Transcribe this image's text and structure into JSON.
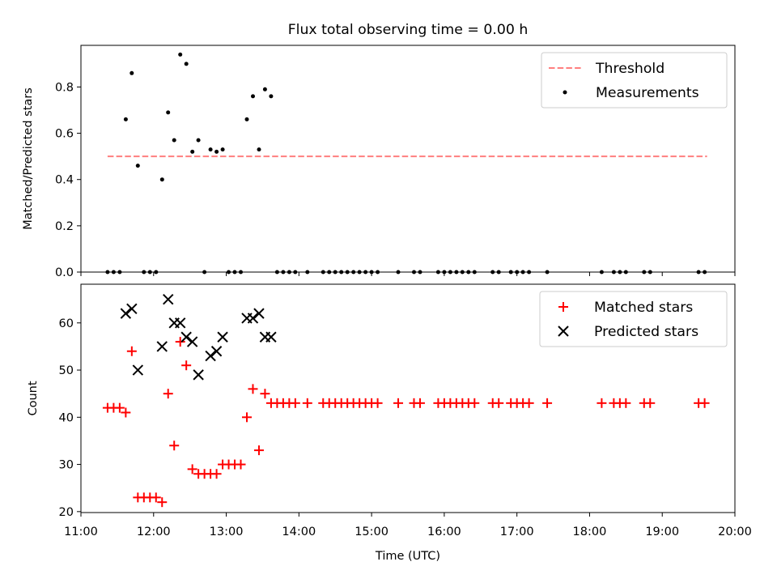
{
  "chart_data": [
    {
      "type": "scatter",
      "title": "Flux total observing time = 0.00 h",
      "xlabel": "",
      "ylabel": "Matched/Predicted stars",
      "xlim": [
        "11:00",
        "20:00"
      ],
      "ylim": [
        0,
        0.98
      ],
      "y_ticks": [
        "0.0",
        "0.2",
        "0.4",
        "0.6",
        "0.8"
      ],
      "grid": false,
      "legend": "top-right",
      "threshold": {
        "name": "Threshold",
        "value": 0.5,
        "x_range": [
          "11:22",
          "19:37"
        ],
        "color": "#ff7f7f",
        "style": "dashed"
      },
      "series": [
        {
          "name": "Measurements",
          "color": "#000000",
          "marker": "dot",
          "points": [
            [
              "11:22",
              0
            ],
            [
              "11:27",
              0
            ],
            [
              "11:32",
              0
            ],
            [
              "11:37",
              0.66
            ],
            [
              "11:42",
              0.86
            ],
            [
              "11:47",
              0.46
            ],
            [
              "11:52",
              0
            ],
            [
              "11:57",
              0
            ],
            [
              "12:02",
              0
            ],
            [
              "12:07",
              0.4
            ],
            [
              "12:12",
              0.69
            ],
            [
              "12:17",
              0.57
            ],
            [
              "12:22",
              0.94
            ],
            [
              "12:27",
              0.9
            ],
            [
              "12:32",
              0.52
            ],
            [
              "12:37",
              0.57
            ],
            [
              "12:42",
              0
            ],
            [
              "12:47",
              0.53
            ],
            [
              "12:52",
              0.52
            ],
            [
              "12:57",
              0.53
            ],
            [
              "13:02",
              0
            ],
            [
              "13:07",
              0
            ],
            [
              "13:12",
              0
            ],
            [
              "13:17",
              0.66
            ],
            [
              "13:22",
              0.76
            ],
            [
              "13:27",
              0.53
            ],
            [
              "13:32",
              0.79
            ],
            [
              "13:37",
              0.76
            ],
            [
              "13:42",
              0
            ],
            [
              "13:47",
              0
            ],
            [
              "13:52",
              0
            ],
            [
              "13:57",
              0
            ],
            [
              "14:07",
              0
            ],
            [
              "14:20",
              0
            ],
            [
              "14:25",
              0
            ],
            [
              "14:30",
              0
            ],
            [
              "14:35",
              0
            ],
            [
              "14:40",
              0
            ],
            [
              "14:45",
              0
            ],
            [
              "14:50",
              0
            ],
            [
              "14:55",
              0
            ],
            [
              "15:00",
              0
            ],
            [
              "15:05",
              0
            ],
            [
              "15:22",
              0
            ],
            [
              "15:35",
              0
            ],
            [
              "15:40",
              0
            ],
            [
              "15:55",
              0
            ],
            [
              "16:00",
              0
            ],
            [
              "16:05",
              0
            ],
            [
              "16:10",
              0
            ],
            [
              "16:15",
              0
            ],
            [
              "16:20",
              0
            ],
            [
              "16:25",
              0
            ],
            [
              "16:40",
              0
            ],
            [
              "16:45",
              0
            ],
            [
              "16:55",
              0
            ],
            [
              "17:00",
              0
            ],
            [
              "17:05",
              0
            ],
            [
              "17:10",
              0
            ],
            [
              "17:25",
              0
            ],
            [
              "18:10",
              0
            ],
            [
              "18:20",
              0
            ],
            [
              "18:25",
              0
            ],
            [
              "18:30",
              0
            ],
            [
              "18:45",
              0
            ],
            [
              "18:50",
              0
            ],
            [
              "19:30",
              0
            ],
            [
              "19:35",
              0
            ]
          ]
        }
      ]
    },
    {
      "type": "scatter",
      "title": "",
      "xlabel": "Time (UTC)",
      "ylabel": "Count",
      "xlim": [
        "11:00",
        "20:00"
      ],
      "ylim": [
        19.8,
        68.2
      ],
      "x_ticks": [
        "11:00",
        "12:00",
        "13:00",
        "14:00",
        "15:00",
        "16:00",
        "17:00",
        "18:00",
        "19:00",
        "20:00"
      ],
      "y_ticks": [
        "20",
        "30",
        "40",
        "50",
        "60"
      ],
      "grid": false,
      "legend": "top-right",
      "series": [
        {
          "name": "Matched stars",
          "color": "#ff0000",
          "marker": "plus",
          "points": [
            [
              "11:22",
              42
            ],
            [
              "11:27",
              42
            ],
            [
              "11:32",
              42
            ],
            [
              "11:37",
              41
            ],
            [
              "11:42",
              54
            ],
            [
              "11:47",
              23
            ],
            [
              "11:52",
              23
            ],
            [
              "11:57",
              23
            ],
            [
              "12:02",
              23
            ],
            [
              "12:07",
              22
            ],
            [
              "12:12",
              45
            ],
            [
              "12:17",
              34
            ],
            [
              "12:22",
              56
            ],
            [
              "12:27",
              51
            ],
            [
              "12:32",
              29
            ],
            [
              "12:37",
              28
            ],
            [
              "12:42",
              28
            ],
            [
              "12:47",
              28
            ],
            [
              "12:52",
              28
            ],
            [
              "12:57",
              30
            ],
            [
              "13:02",
              30
            ],
            [
              "13:07",
              30
            ],
            [
              "13:12",
              30
            ],
            [
              "13:17",
              40
            ],
            [
              "13:22",
              46
            ],
            [
              "13:27",
              33
            ],
            [
              "13:32",
              45
            ],
            [
              "13:37",
              43
            ],
            [
              "13:42",
              43
            ],
            [
              "13:47",
              43
            ],
            [
              "13:52",
              43
            ],
            [
              "13:57",
              43
            ],
            [
              "14:07",
              43
            ],
            [
              "14:20",
              43
            ],
            [
              "14:25",
              43
            ],
            [
              "14:30",
              43
            ],
            [
              "14:35",
              43
            ],
            [
              "14:40",
              43
            ],
            [
              "14:45",
              43
            ],
            [
              "14:50",
              43
            ],
            [
              "14:55",
              43
            ],
            [
              "15:00",
              43
            ],
            [
              "15:05",
              43
            ],
            [
              "15:22",
              43
            ],
            [
              "15:35",
              43
            ],
            [
              "15:40",
              43
            ],
            [
              "15:55",
              43
            ],
            [
              "16:00",
              43
            ],
            [
              "16:05",
              43
            ],
            [
              "16:10",
              43
            ],
            [
              "16:15",
              43
            ],
            [
              "16:20",
              43
            ],
            [
              "16:25",
              43
            ],
            [
              "16:40",
              43
            ],
            [
              "16:45",
              43
            ],
            [
              "16:55",
              43
            ],
            [
              "17:00",
              43
            ],
            [
              "17:05",
              43
            ],
            [
              "17:10",
              43
            ],
            [
              "17:25",
              43
            ],
            [
              "18:10",
              43
            ],
            [
              "18:20",
              43
            ],
            [
              "18:25",
              43
            ],
            [
              "18:30",
              43
            ],
            [
              "18:45",
              43
            ],
            [
              "18:50",
              43
            ],
            [
              "19:30",
              43
            ],
            [
              "19:35",
              43
            ]
          ]
        },
        {
          "name": "Predicted stars",
          "color": "#000000",
          "marker": "cross",
          "points": [
            [
              "11:37",
              62
            ],
            [
              "11:42",
              63
            ],
            [
              "11:47",
              50
            ],
            [
              "12:07",
              55
            ],
            [
              "12:12",
              65
            ],
            [
              "12:17",
              60
            ],
            [
              "12:22",
              60
            ],
            [
              "12:27",
              57
            ],
            [
              "12:32",
              56
            ],
            [
              "12:37",
              49
            ],
            [
              "12:47",
              53
            ],
            [
              "12:52",
              54
            ],
            [
              "12:57",
              57
            ],
            [
              "13:17",
              61
            ],
            [
              "13:22",
              61
            ],
            [
              "13:27",
              62
            ],
            [
              "13:32",
              57
            ],
            [
              "13:37",
              57
            ]
          ]
        }
      ]
    }
  ]
}
